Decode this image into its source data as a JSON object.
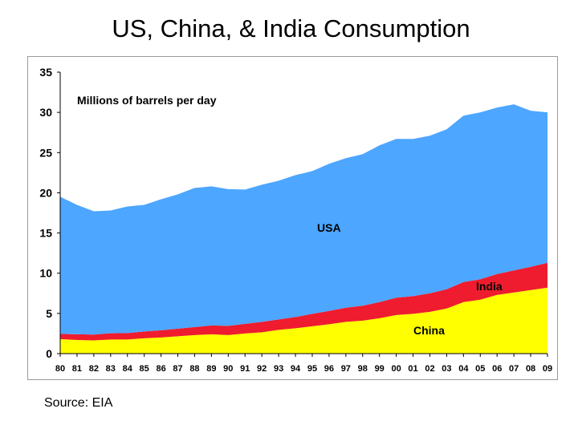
{
  "title": "US, China, & India Consumption",
  "source": "Source: EIA",
  "chart_data": {
    "type": "area",
    "stacked": true,
    "unit_note": "Millions of barrels per day",
    "xlabel": "",
    "ylabel": "",
    "ylim": [
      0,
      35
    ],
    "yticks": [
      0,
      5,
      10,
      15,
      20,
      25,
      30,
      35
    ],
    "grid": false,
    "x": [
      "80",
      "81",
      "82",
      "83",
      "84",
      "85",
      "86",
      "87",
      "88",
      "89",
      "90",
      "91",
      "92",
      "93",
      "94",
      "95",
      "96",
      "97",
      "98",
      "99",
      "00",
      "01",
      "02",
      "03",
      "04",
      "05",
      "06",
      "07",
      "08",
      "09"
    ],
    "series": [
      {
        "name": "China",
        "color": "#ffff00",
        "values": [
          1.8,
          1.7,
          1.65,
          1.75,
          1.75,
          1.9,
          2.0,
          2.15,
          2.3,
          2.4,
          2.3,
          2.5,
          2.65,
          2.95,
          3.15,
          3.4,
          3.65,
          3.95,
          4.1,
          4.4,
          4.8,
          4.95,
          5.2,
          5.6,
          6.4,
          6.7,
          7.3,
          7.6,
          7.9,
          8.2
        ]
      },
      {
        "name": "India",
        "color": "#ee1c2e",
        "values": [
          0.65,
          0.7,
          0.72,
          0.78,
          0.8,
          0.85,
          0.9,
          0.95,
          1.0,
          1.1,
          1.15,
          1.2,
          1.3,
          1.3,
          1.4,
          1.55,
          1.65,
          1.75,
          1.85,
          2.0,
          2.15,
          2.2,
          2.3,
          2.4,
          2.5,
          2.55,
          2.6,
          2.75,
          2.9,
          3.1
        ]
      },
      {
        "name": "USA",
        "color": "#4da6ff",
        "values": [
          17.05,
          16.1,
          15.33,
          15.27,
          15.75,
          15.75,
          16.3,
          16.7,
          17.3,
          17.3,
          17.0,
          16.7,
          17.05,
          17.25,
          17.65,
          17.75,
          18.3,
          18.6,
          18.85,
          19.5,
          19.75,
          19.55,
          19.6,
          19.9,
          20.7,
          20.75,
          20.7,
          20.65,
          19.4,
          18.7
        ]
      }
    ],
    "labels": {
      "usa": "USA",
      "india": "India",
      "china": "China"
    },
    "colors": {
      "axis": "#000000",
      "frame": "#9a9a9a"
    }
  }
}
